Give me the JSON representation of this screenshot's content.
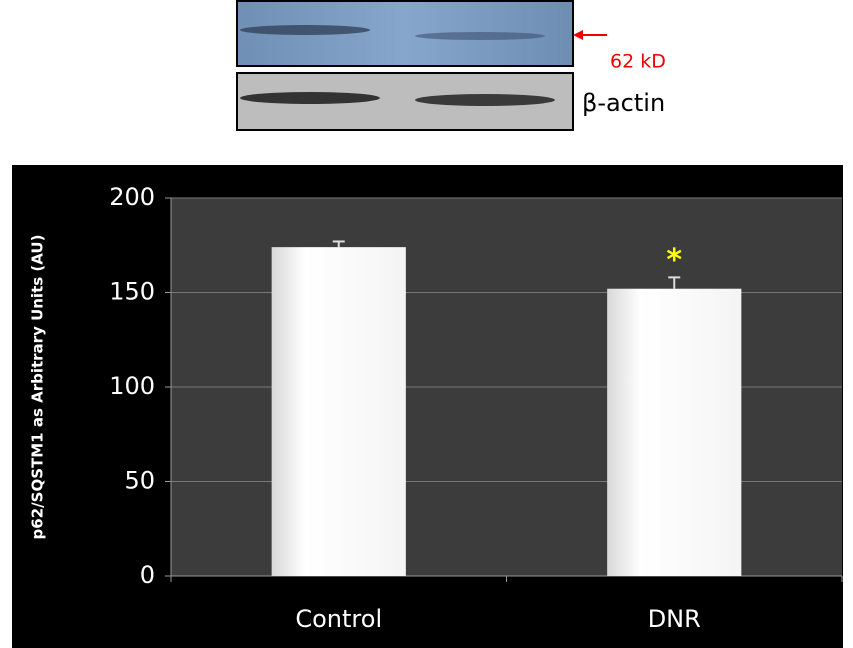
{
  "blot": {
    "band_label": "62 kD",
    "loading_label": "β-actin"
  },
  "chart_data": {
    "type": "bar",
    "y_label": "p62/SQSTM1 as Arbitrary Units (AU)",
    "categories": [
      "Control",
      "DNR"
    ],
    "series": [
      {
        "values": [
          174,
          152
        ],
        "errors": [
          3,
          6
        ],
        "color": "#ffffff"
      }
    ],
    "annotations": [
      {
        "text": "*",
        "category": 1,
        "color": "#ffff00"
      }
    ],
    "ylim": [
      0,
      200
    ],
    "yticks": [
      0,
      50,
      100,
      150,
      200
    ],
    "grid": true
  }
}
